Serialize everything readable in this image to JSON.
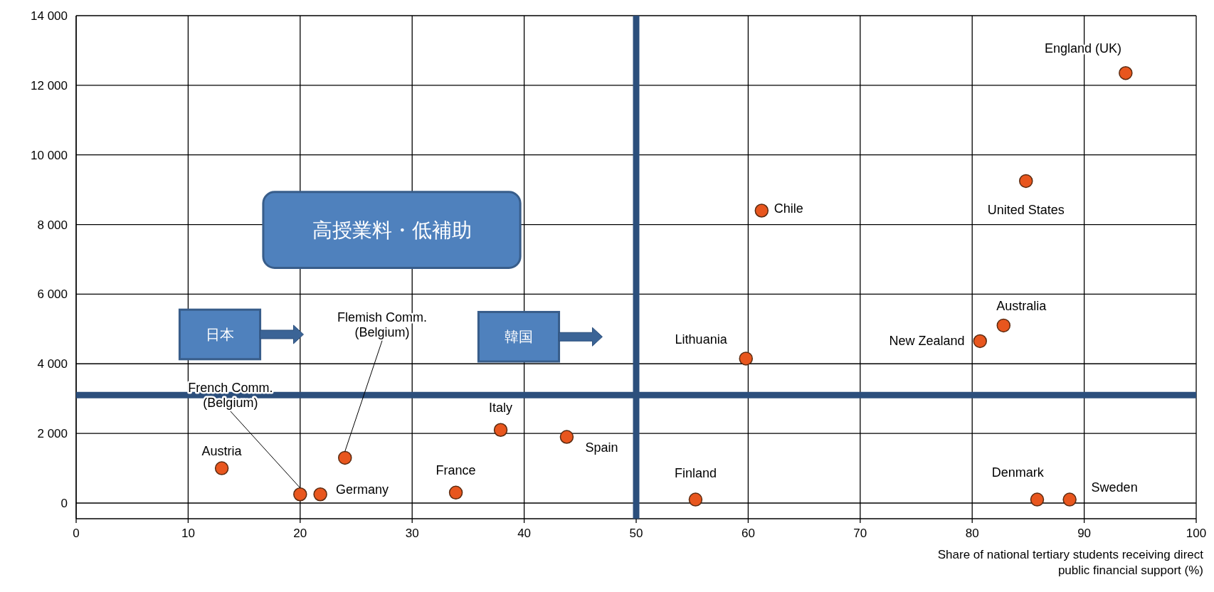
{
  "chart_data": {
    "type": "scatter",
    "xlabel": "Share of national tertiary students receiving direct public financial support (%)",
    "xlim": [
      0,
      100
    ],
    "ylim": [
      -450,
      14000
    ],
    "xticks": [
      0,
      10,
      20,
      30,
      40,
      50,
      60,
      70,
      80,
      90,
      100
    ],
    "yticks": [
      {
        "value": 0,
        "label": "0"
      },
      {
        "value": 2000,
        "label": "2 000"
      },
      {
        "value": 4000,
        "label": "4 000"
      },
      {
        "value": 6000,
        "label": "6 000"
      },
      {
        "value": 8000,
        "label": "8 000"
      },
      {
        "value": 10000,
        "label": "10 000"
      },
      {
        "value": 12000,
        "label": "12 000"
      },
      {
        "value": 14000,
        "label": "14 000"
      }
    ],
    "grid": true,
    "marker": "circle",
    "series": [
      {
        "name": "Austria",
        "color": "#e8561e",
        "x": [
          13
        ],
        "values": [
          1000
        ]
      },
      {
        "name": "French Comm. (Belgium)",
        "color": "#e8561e",
        "x": [
          20
        ],
        "values": [
          250
        ]
      },
      {
        "name": "Germany",
        "color": "#e8561e",
        "x": [
          21.8
        ],
        "values": [
          250
        ]
      },
      {
        "name": "Flemish Comm. (Belgium)",
        "color": "#e8561e",
        "x": [
          24
        ],
        "values": [
          1300
        ]
      },
      {
        "name": "France",
        "color": "#e8561e",
        "x": [
          33.9
        ],
        "values": [
          300
        ]
      },
      {
        "name": "Italy",
        "color": "#e8561e",
        "x": [
          37.9
        ],
        "values": [
          2100
        ]
      },
      {
        "name": "Spain",
        "color": "#e8561e",
        "x": [
          43.8
        ],
        "values": [
          1900
        ]
      },
      {
        "name": "Finland",
        "color": "#e8561e",
        "x": [
          55.3
        ],
        "values": [
          100
        ]
      },
      {
        "name": "Lithuania",
        "color": "#e8561e",
        "x": [
          59.8
        ],
        "values": [
          4150
        ]
      },
      {
        "name": "Chile",
        "color": "#e8561e",
        "x": [
          61.2
        ],
        "values": [
          8400
        ]
      },
      {
        "name": "New Zealand",
        "color": "#e8561e",
        "x": [
          80.7
        ],
        "values": [
          4650
        ]
      },
      {
        "name": "Australia",
        "color": "#e8561e",
        "x": [
          82.8
        ],
        "values": [
          5100
        ]
      },
      {
        "name": "United States",
        "color": "#e8561e",
        "x": [
          84.8
        ],
        "values": [
          9250
        ]
      },
      {
        "name": "Denmark",
        "color": "#e8561e",
        "x": [
          85.8
        ],
        "values": [
          100
        ]
      },
      {
        "name": "Sweden",
        "color": "#e8561e",
        "x": [
          88.7
        ],
        "values": [
          100
        ]
      },
      {
        "name": "England (UK)",
        "color": "#e8561e",
        "x": [
          93.7
        ],
        "values": [
          12350
        ]
      }
    ],
    "ref_lines": [
      {
        "axis": "x",
        "value": 50,
        "color": "#2c4f7c"
      },
      {
        "axis": "y",
        "value": 3100,
        "color": "#2c4f7c"
      }
    ],
    "annotations": [
      "高授業料・低補助",
      "日本",
      "韓国"
    ]
  }
}
